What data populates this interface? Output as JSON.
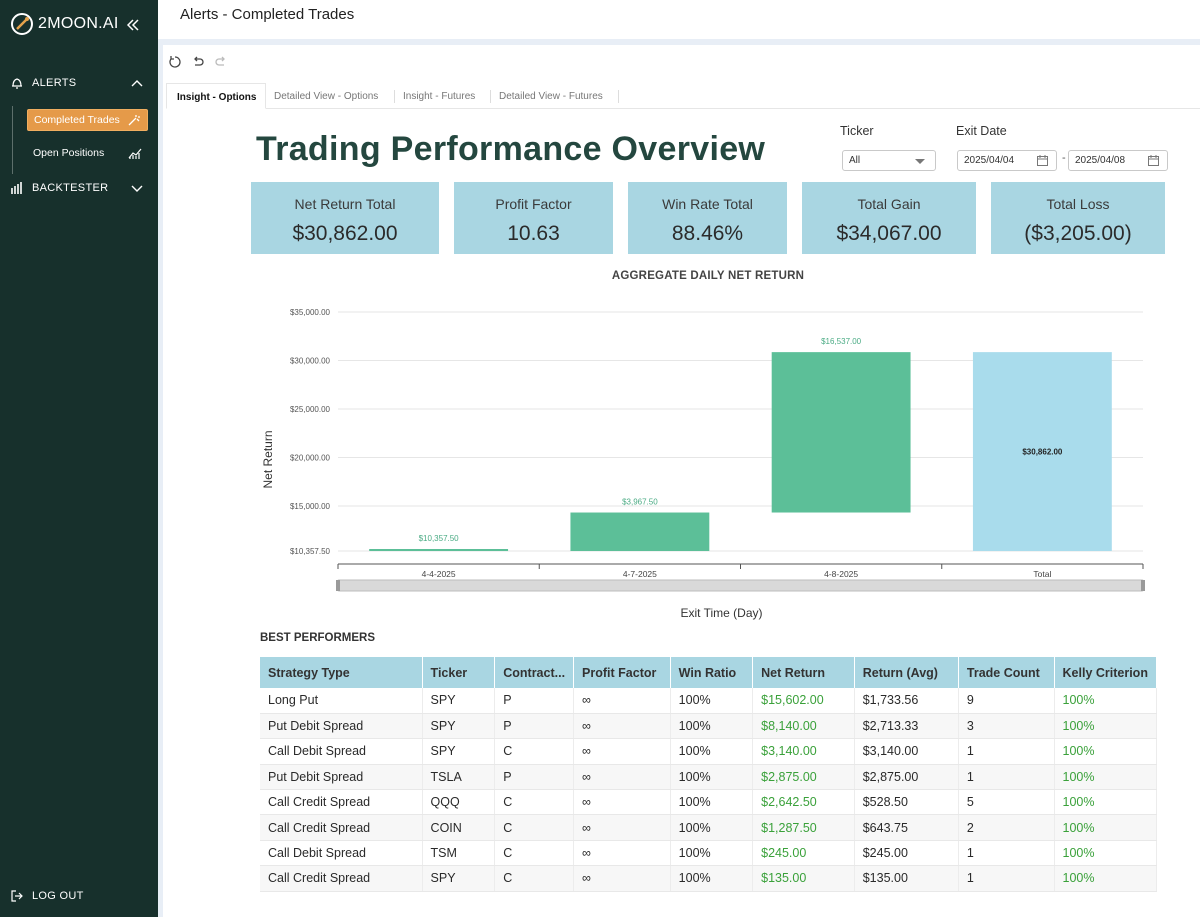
{
  "brand": {
    "name": "2MOON.AI"
  },
  "sidebar": {
    "alerts_label": "ALERTS",
    "sub_items": [
      {
        "label": "Completed Trades",
        "icon": "magic-wand-icon",
        "active": true
      },
      {
        "label": "Open Positions",
        "icon": "trend-chart-icon",
        "active": false
      }
    ],
    "backtester_label": "BACKTESTER",
    "logout_label": "LOG OUT"
  },
  "header": {
    "title": "Alerts - Completed Trades"
  },
  "tabs": [
    {
      "label": "Insight - Options",
      "active": true
    },
    {
      "label": "Detailed View - Options",
      "active": false
    },
    {
      "label": "Insight - Futures",
      "active": false
    },
    {
      "label": "Detailed View - Futures",
      "active": false
    }
  ],
  "dashboard": {
    "title": "Trading Performance Overview",
    "filters": {
      "ticker_label": "Ticker",
      "ticker_value": "All",
      "exit_date_label": "Exit Date",
      "date_from": "2025/04/04",
      "date_separator": "-",
      "date_to": "2025/04/08"
    },
    "kpis": [
      {
        "label": "Net Return Total",
        "value": "$30,862.00"
      },
      {
        "label": "Profit Factor",
        "value": "10.63"
      },
      {
        "label": "Win Rate Total",
        "value": "88.46%"
      },
      {
        "label": "Total Gain",
        "value": "$34,067.00"
      },
      {
        "label": "Total Loss",
        "value": "($3,205.00)"
      }
    ],
    "chart_title": "AGGREGATE DAILY NET RETURN",
    "table_title": "BEST PERFORMERS"
  },
  "chart_data": {
    "type": "waterfall",
    "title": "AGGREGATE DAILY NET RETURN",
    "xlabel": "Exit Time (Day)",
    "ylabel": "Net Return",
    "categories": [
      "4-4-2025",
      "4-7-2025",
      "4-8-2025",
      "Total"
    ],
    "steps": [
      10357.5,
      3967.5,
      16537.0,
      30862.0
    ],
    "bars": [
      {
        "category": "4-4-2025",
        "start": 10357.5,
        "end": 10357.5,
        "label": "$10,357.50",
        "kind": "increase"
      },
      {
        "category": "4-7-2025",
        "start": 10357.5,
        "end": 14325.0,
        "label": "$3,967.50",
        "kind": "increase"
      },
      {
        "category": "4-8-2025",
        "start": 14325.0,
        "end": 30862.0,
        "label": "$16,537.00",
        "kind": "increase"
      },
      {
        "category": "Total",
        "start": 10357.5,
        "end": 30862.0,
        "label": "$30,862.00",
        "kind": "total"
      }
    ],
    "y_ticks": [
      {
        "value": 10357.5,
        "label": "$10,357.50"
      },
      {
        "value": 15000,
        "label": "$15,000.00"
      },
      {
        "value": 20000,
        "label": "$20,000.00"
      },
      {
        "value": 25000,
        "label": "$25,000.00"
      },
      {
        "value": 30000,
        "label": "$30,000.00"
      },
      {
        "value": 35000,
        "label": "$35,000.00"
      }
    ],
    "ylim": [
      10357.5,
      35000
    ],
    "grid": true,
    "colors": {
      "increase": "#5cbf98",
      "total": "#a9dcec",
      "label_increase": "#4aab84"
    }
  },
  "table": {
    "columns": [
      "Strategy Type",
      "Ticker",
      "Contract...",
      "Profit Factor",
      "Win Ratio",
      "Net Return",
      "Return (Avg)",
      "Trade Count",
      "Kelly Criterion"
    ],
    "rows": [
      [
        "Long Put",
        "SPY",
        "P",
        "∞",
        "100%",
        "$15,602.00",
        "$1,733.56",
        "9",
        "100%"
      ],
      [
        "Put Debit Spread",
        "SPY",
        "P",
        "∞",
        "100%",
        "$8,140.00",
        "$2,713.33",
        "3",
        "100%"
      ],
      [
        "Call Debit Spread",
        "SPY",
        "C",
        "∞",
        "100%",
        "$3,140.00",
        "$3,140.00",
        "1",
        "100%"
      ],
      [
        "Put Debit Spread",
        "TSLA",
        "P",
        "∞",
        "100%",
        "$2,875.00",
        "$2,875.00",
        "1",
        "100%"
      ],
      [
        "Call Credit Spread",
        "QQQ",
        "C",
        "∞",
        "100%",
        "$2,642.50",
        "$528.50",
        "5",
        "100%"
      ],
      [
        "Call Credit Spread",
        "COIN",
        "C",
        "∞",
        "100%",
        "$1,287.50",
        "$643.75",
        "2",
        "100%"
      ],
      [
        "Call Debit Spread",
        "TSM",
        "C",
        "∞",
        "100%",
        "$245.00",
        "$245.00",
        "1",
        "100%"
      ],
      [
        "Call Credit Spread",
        "SPY",
        "C",
        "∞",
        "100%",
        "$135.00",
        "$135.00",
        "1",
        "100%"
      ]
    ]
  }
}
